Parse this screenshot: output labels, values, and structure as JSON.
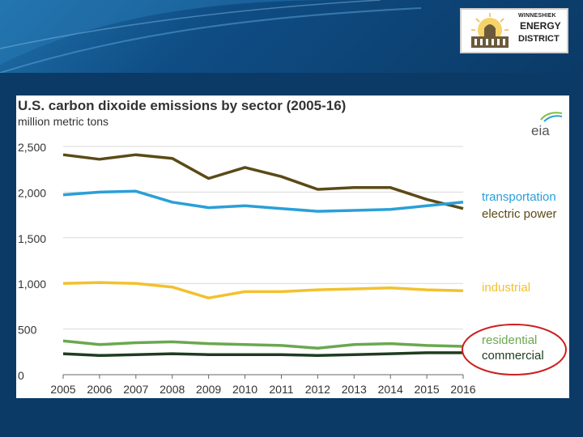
{
  "logo": {
    "line1": "WINNESHIEK",
    "line2": "ENERGY",
    "line3": "DISTRICT"
  },
  "chart_data": {
    "type": "line",
    "title": "U.S. carbon dixoide emissions by sector (2005-16)",
    "subtitle": "million metric tons",
    "source_logo": "eia",
    "x": [
      "2005",
      "2006",
      "2007",
      "2008",
      "2009",
      "2010",
      "2011",
      "2012",
      "2013",
      "2014",
      "2015",
      "2016"
    ],
    "ylim": [
      0,
      2500
    ],
    "yticks": [
      0,
      500,
      1000,
      1500,
      2000,
      2500
    ],
    "ytick_labels": [
      "0",
      "500",
      "1,000",
      "1,500",
      "2,000",
      "2,500"
    ],
    "grid": true,
    "series": [
      {
        "name": "electric power",
        "color": "#5b4a17",
        "values": [
          2410,
          2360,
          2410,
          2370,
          2150,
          2270,
          2170,
          2030,
          2050,
          2050,
          1920,
          1820
        ]
      },
      {
        "name": "transportation",
        "color": "#2a9fd8",
        "values": [
          1970,
          2000,
          2010,
          1890,
          1830,
          1850,
          1820,
          1790,
          1800,
          1810,
          1850,
          1890
        ]
      },
      {
        "name": "industrial",
        "color": "#f2c12e",
        "values": [
          1000,
          1010,
          1000,
          960,
          840,
          910,
          910,
          930,
          940,
          950,
          930,
          920
        ]
      },
      {
        "name": "residential",
        "color": "#6aa84f",
        "values": [
          370,
          330,
          350,
          360,
          340,
          330,
          320,
          290,
          330,
          340,
          320,
          310
        ]
      },
      {
        "name": "commercial",
        "color": "#1e3d1f",
        "values": [
          230,
          210,
          220,
          230,
          220,
          220,
          220,
          210,
          220,
          230,
          240,
          240
        ]
      }
    ]
  }
}
